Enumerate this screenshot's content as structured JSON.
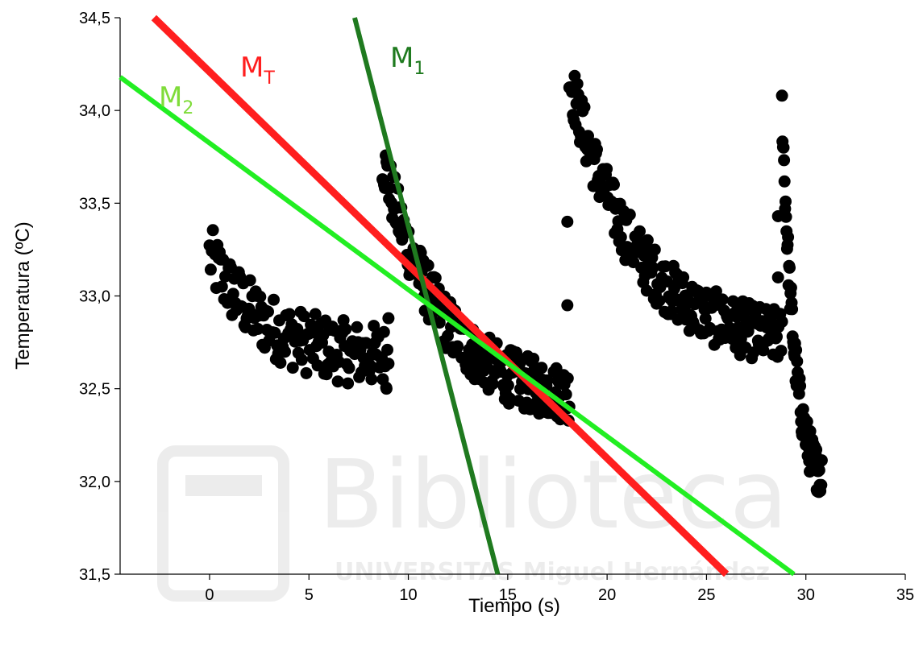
{
  "chart_data": {
    "type": "scatter",
    "title": "",
    "xlabel": "Tiempo (s)",
    "ylabel": "Temperatura (ºC)",
    "xlim": [
      -4.5,
      35
    ],
    "ylim": [
      31.5,
      34.5
    ],
    "x_ticks": [
      0,
      5,
      10,
      15,
      20,
      25,
      30,
      35
    ],
    "x_tick_labels": [
      "0",
      "5",
      "10",
      "15",
      "20",
      "25",
      "30",
      "35"
    ],
    "y_ticks": [
      31.5,
      32.0,
      32.5,
      33.0,
      33.5,
      34.0,
      34.5
    ],
    "y_tick_labels": [
      "31,5",
      "32,0",
      "32,5",
      "33,0",
      "33,5",
      "34,0",
      "34,5"
    ],
    "grid": false,
    "point_color": "#000000",
    "series": [
      {
        "kind": "scatter",
        "color": "#000000",
        "segments": [
          {
            "x_range": [
              0,
              9
            ],
            "start_y": 33.22,
            "end_y": 32.65,
            "spread": 0.17,
            "count": 160
          },
          {
            "x_range": [
              8.7,
              18.1
            ],
            "start_y": 33.75,
            "end_y": 32.42,
            "spread": 0.15,
            "count": 230
          },
          {
            "x_range": [
              18.1,
              28.8
            ],
            "start_y": 34.18,
            "end_y": 32.72,
            "spread": 0.15,
            "count": 240
          },
          {
            "x_range": [
              28.8,
              30.8
            ],
            "start_y": 34.02,
            "end_y": 31.95,
            "spread": 0.12,
            "count": 80
          }
        ],
        "outliers": [
          {
            "x": 9.0,
            "y": 32.88
          },
          {
            "x": 8.9,
            "y": 32.5
          },
          {
            "x": 18.0,
            "y": 32.95
          },
          {
            "x": 18.0,
            "y": 33.4
          },
          {
            "x": 28.6,
            "y": 33.1
          },
          {
            "x": 28.6,
            "y": 33.43
          }
        ]
      },
      {
        "kind": "line",
        "name": "M",
        "subscript": "T",
        "color": "#ff1e1e",
        "x": [
          -2.8,
          26.0
        ],
        "y": [
          34.5,
          31.5
        ]
      },
      {
        "kind": "line",
        "name": "M",
        "subscript": "1",
        "color": "#1f7a1f",
        "x": [
          7.3,
          14.5
        ],
        "y": [
          34.5,
          31.5
        ]
      },
      {
        "kind": "line",
        "name": "M",
        "subscript": "2",
        "color": "#22ee22",
        "x": [
          -4.5,
          29.4
        ],
        "y": [
          34.18,
          31.5
        ]
      }
    ]
  },
  "watermark": {
    "title": "Biblioteca",
    "subtitle": "UNIVERSITAS Miguel Hernández"
  }
}
